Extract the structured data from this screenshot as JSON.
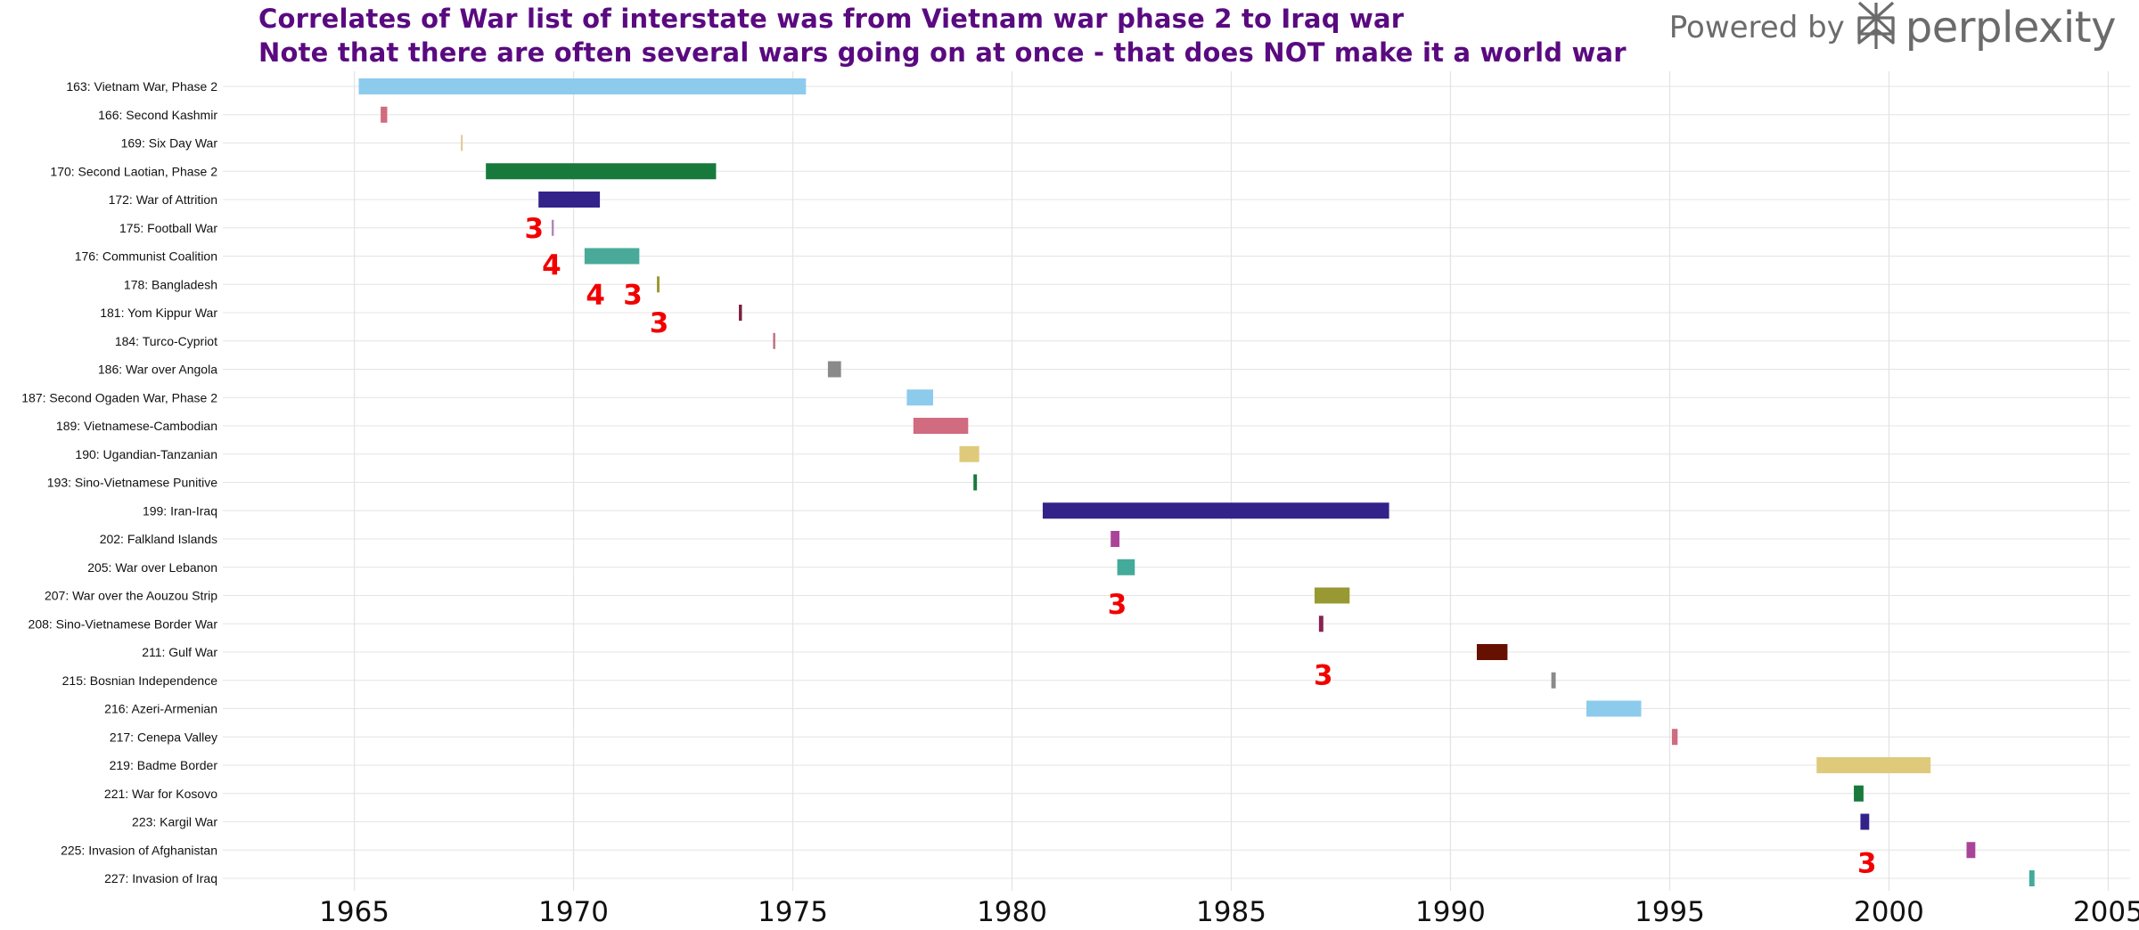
{
  "header": {
    "title_line_1": "Correlates of War list of interstate was from Vietnam war phase 2 to Iraq war",
    "title_line_2": "Note that there are often several wars going on at once - that does NOT make it a world war"
  },
  "brand": {
    "prefix": "Powered by",
    "name": "perplexity",
    "icon": "perplexity-logo-icon"
  },
  "chart_data": {
    "type": "gantt",
    "title": "Correlates of War list of interstate was from Vietnam war phase 2 to Iraq war",
    "xlabel": "",
    "ylabel": "",
    "xlim": [
      1962,
      2005.5
    ],
    "xticks": [
      1965,
      1970,
      1975,
      1980,
      1985,
      1990,
      1995,
      2000,
      2005
    ],
    "grid": true,
    "categories": [
      {
        "label": "163: Vietnam War, Phase 2",
        "start": 1965.1,
        "end": 1975.3,
        "color": "#8dcbec"
      },
      {
        "label": "166: Second Kashmir",
        "start": 1965.6,
        "end": 1965.75,
        "color": "#d06b80"
      },
      {
        "label": "169: Six Day War",
        "start": 1967.43,
        "end": 1967.46,
        "color": "#e1c890"
      },
      {
        "label": "170: Second Laotian, Phase 2",
        "start": 1968.0,
        "end": 1973.25,
        "color": "#177a3c"
      },
      {
        "label": "172: War of Attrition",
        "start": 1969.2,
        "end": 1970.6,
        "color": "#33228a"
      },
      {
        "label": "175: Football War",
        "start": 1969.5,
        "end": 1969.55,
        "color": "#b088b8"
      },
      {
        "label": "176: Communist Coalition",
        "start": 1970.25,
        "end": 1971.5,
        "color": "#4aaa99"
      },
      {
        "label": "178: Bangladesh",
        "start": 1971.9,
        "end": 1971.96,
        "color": "#999933"
      },
      {
        "label": "181: Yom Kippur War",
        "start": 1973.77,
        "end": 1973.84,
        "color": "#7a2040"
      },
      {
        "label": "184: Turco-Cypriot",
        "start": 1974.55,
        "end": 1974.6,
        "color": "#c07080"
      },
      {
        "label": "186: War over Angola",
        "start": 1975.8,
        "end": 1976.1,
        "color": "#8a8a8a"
      },
      {
        "label": "187: Second Ogaden War, Phase 2",
        "start": 1977.6,
        "end": 1978.2,
        "color": "#8dcbec"
      },
      {
        "label": "189: Vietnamese-Cambodian",
        "start": 1977.75,
        "end": 1979.0,
        "color": "#d06b80"
      },
      {
        "label": "190: Ugandian-Tanzanian",
        "start": 1978.8,
        "end": 1979.25,
        "color": "#dfca7b"
      },
      {
        "label": "193: Sino-Vietnamese Punitive",
        "start": 1979.12,
        "end": 1979.2,
        "color": "#177a3c"
      },
      {
        "label": "199: Iran-Iraq",
        "start": 1980.7,
        "end": 1988.6,
        "color": "#33228a"
      },
      {
        "label": "202: Falkland Islands",
        "start": 1982.25,
        "end": 1982.45,
        "color": "#aa4499"
      },
      {
        "label": "205: War over Lebanon",
        "start": 1982.4,
        "end": 1982.8,
        "color": "#44aa99"
      },
      {
        "label": "207: War over the Aouzou Strip",
        "start": 1986.9,
        "end": 1987.7,
        "color": "#999933"
      },
      {
        "label": "208: Sino-Vietnamese Border War",
        "start": 1987.0,
        "end": 1987.1,
        "color": "#882255"
      },
      {
        "label": "211: Gulf War",
        "start": 1990.6,
        "end": 1991.3,
        "color": "#661100"
      },
      {
        "label": "215: Bosnian Independence",
        "start": 1992.3,
        "end": 1992.4,
        "color": "#8a8a8a"
      },
      {
        "label": "216: Azeri-Armenian",
        "start": 1993.1,
        "end": 1994.35,
        "color": "#8dcbec"
      },
      {
        "label": "217: Cenepa Valley",
        "start": 1995.05,
        "end": 1995.18,
        "color": "#d06b80"
      },
      {
        "label": "219: Badme Border",
        "start": 1998.35,
        "end": 2000.95,
        "color": "#dfca7b"
      },
      {
        "label": "221: War for Kosovo",
        "start": 1999.2,
        "end": 1999.42,
        "color": "#177a3c"
      },
      {
        "label": "223: Kargil War",
        "start": 1999.35,
        "end": 1999.55,
        "color": "#33228a"
      },
      {
        "label": "225: Invasion of Afghanistan",
        "start": 2001.77,
        "end": 2001.97,
        "color": "#aa4499"
      },
      {
        "label": "227: Invasion of Iraq",
        "start": 2003.2,
        "end": 2003.32,
        "color": "#44aa99"
      }
    ],
    "annotations": [
      {
        "text": "3",
        "x": 1969.1,
        "y": 5.0
      },
      {
        "text": "4",
        "x": 1969.5,
        "y": 6.3
      },
      {
        "text": "4",
        "x": 1970.5,
        "y": 7.35
      },
      {
        "text": "3",
        "x": 1971.35,
        "y": 7.35
      },
      {
        "text": "3",
        "x": 1971.95,
        "y": 8.35
      },
      {
        "text": "3",
        "x": 1982.4,
        "y": 18.3
      },
      {
        "text": "3",
        "x": 1987.1,
        "y": 20.8
      },
      {
        "text": "3",
        "x": 1999.5,
        "y": 27.45
      }
    ],
    "highlight_color": "#f20000"
  }
}
